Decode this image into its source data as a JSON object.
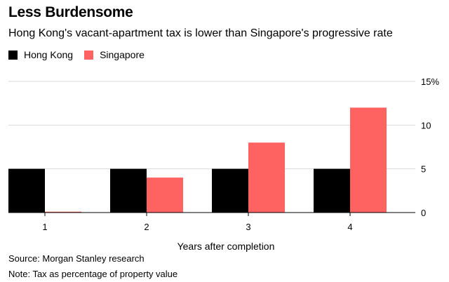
{
  "chart_data": {
    "type": "bar",
    "title": "Less Burdensome",
    "subtitle": "Hong Kong's vacant-apartment tax is lower than Singapore's progressive rate",
    "categories": [
      "1",
      "2",
      "3",
      "4"
    ],
    "series": [
      {
        "name": "Hong Kong",
        "color": "#000000",
        "values": [
          5,
          5,
          5,
          5
        ]
      },
      {
        "name": "Singapore",
        "color": "#ff6361",
        "values": [
          0.1,
          4,
          8,
          12
        ]
      }
    ],
    "xlabel": "Years after completion",
    "ylabel": "",
    "ylim": [
      0,
      15
    ],
    "yticks": [
      {
        "value": 0,
        "label": "0"
      },
      {
        "value": 5,
        "label": "5"
      },
      {
        "value": 10,
        "label": "10"
      },
      {
        "value": 15,
        "label": "15%"
      }
    ],
    "y_axis_side": "right",
    "grid": true,
    "legend_position": "top-left",
    "source": "Source: Morgan Stanley research",
    "note": "Note: Tax as percentage of property value"
  }
}
